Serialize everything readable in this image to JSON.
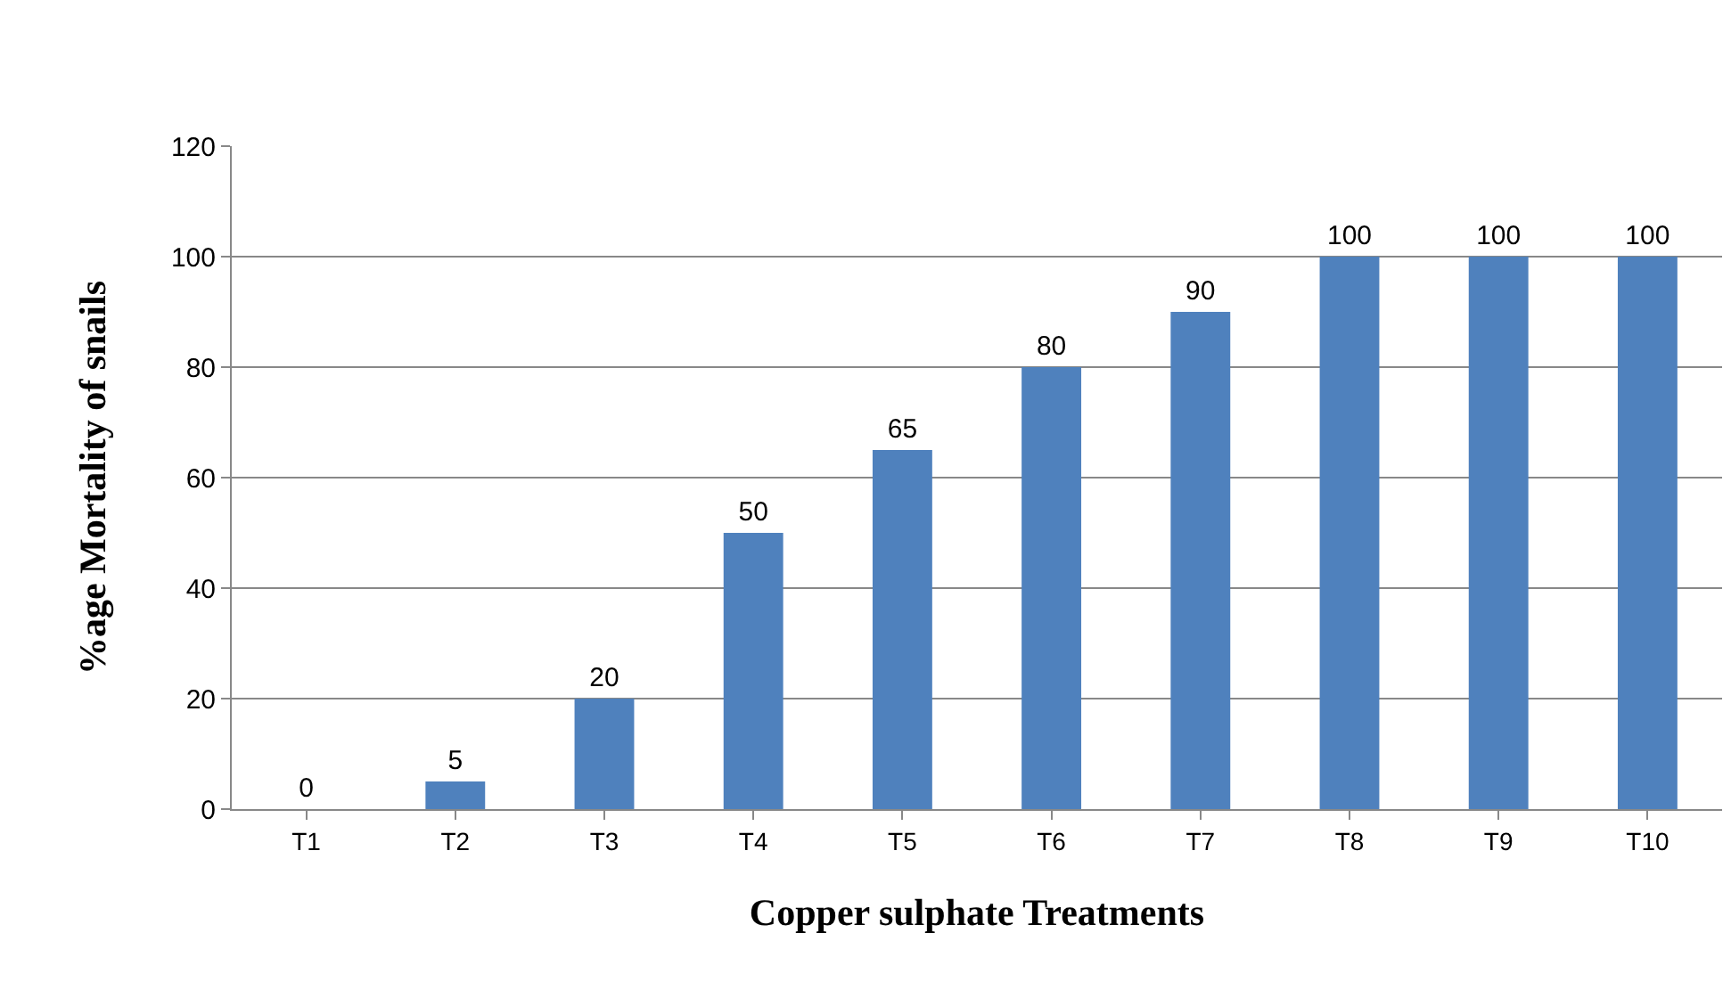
{
  "chart_data": {
    "type": "bar",
    "xlabel": "Copper sulphate Treatments",
    "ylabel": "%age Mortality of snails",
    "categories": [
      "T1",
      "T2",
      "T3",
      "T4",
      "T5",
      "T6",
      "T7",
      "T8",
      "T9",
      "T10"
    ],
    "values": [
      0,
      5,
      20,
      50,
      65,
      80,
      90,
      100,
      100,
      100
    ],
    "color": "#4f81bd",
    "ylim": [
      0,
      120
    ],
    "yticks": [
      0,
      20,
      40,
      60,
      80,
      100,
      120
    ],
    "grid": "y",
    "data_labels": true,
    "legend": false
  }
}
